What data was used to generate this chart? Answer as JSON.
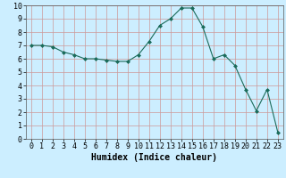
{
  "x": [
    0,
    1,
    2,
    3,
    4,
    5,
    6,
    7,
    8,
    9,
    10,
    11,
    12,
    13,
    14,
    15,
    16,
    17,
    18,
    19,
    20,
    21,
    22,
    23
  ],
  "y": [
    7.0,
    7.0,
    6.9,
    6.5,
    6.3,
    6.0,
    6.0,
    5.9,
    5.8,
    5.8,
    6.3,
    7.3,
    8.5,
    9.0,
    9.8,
    9.8,
    8.4,
    6.0,
    6.3,
    5.5,
    3.7,
    2.1,
    3.7,
    0.5
  ],
  "line_color": "#1a6b5a",
  "marker": "D",
  "marker_size": 2,
  "bg_color": "#cceeff",
  "grid_color": "#cc9999",
  "xlabel": "Humidex (Indice chaleur)",
  "xlim": [
    -0.5,
    23.5
  ],
  "ylim": [
    0,
    10
  ],
  "xticks": [
    0,
    1,
    2,
    3,
    4,
    5,
    6,
    7,
    8,
    9,
    10,
    11,
    12,
    13,
    14,
    15,
    16,
    17,
    18,
    19,
    20,
    21,
    22,
    23
  ],
  "yticks": [
    0,
    1,
    2,
    3,
    4,
    5,
    6,
    7,
    8,
    9,
    10
  ],
  "xlabel_fontsize": 7,
  "tick_fontsize": 6
}
